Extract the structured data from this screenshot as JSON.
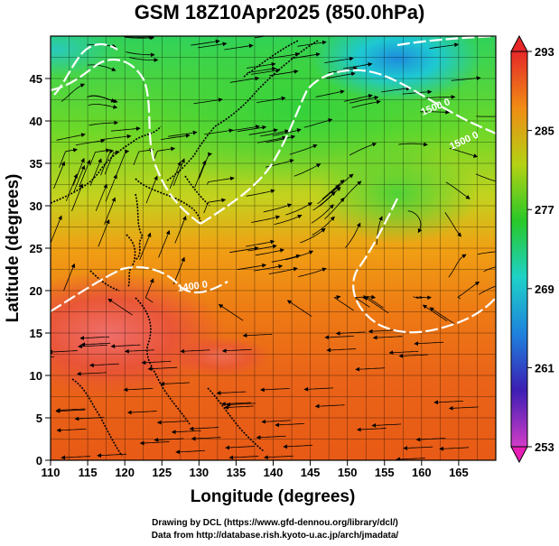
{
  "title": "GSM 18Z10Apr2025 (850.0hPa)",
  "map": {
    "x_axis_label": "Longitude (degrees)",
    "y_axis_label": "Latitude  (degrees)",
    "lon_range": [
      110,
      170
    ],
    "lat_range": [
      0,
      50
    ],
    "lon_ticks": [
      "110",
      "115",
      "120",
      "125",
      "130",
      "135",
      "140",
      "145",
      "150",
      "155",
      "160",
      "165"
    ],
    "lat_ticks": [
      "0",
      "5",
      "10",
      "15",
      "20",
      "25",
      "30",
      "35",
      "40",
      "45"
    ],
    "grid": true,
    "field": "temperature",
    "contour_labels": [
      "1500 0",
      "1500 0",
      "1400 0"
    ],
    "streamlines": true
  },
  "colorbar": {
    "tick_labels": [
      "293",
      "285",
      "277",
      "269",
      "261",
      "253"
    ],
    "range": [
      253,
      293
    ],
    "colors": [
      "#d23cc8",
      "#3c1eb4",
      "#1e82dc",
      "#1ed2c8",
      "#28c828",
      "#b4d214",
      "#f08c14",
      "#e62828"
    ]
  },
  "credits": {
    "line1": "Drawing by DCL (https://www.gfd-dennou.org/library/dcl/)",
    "line2": "Data from http://database.rish.kyoto-u.ac.jp/arch/jmadata/"
  }
}
